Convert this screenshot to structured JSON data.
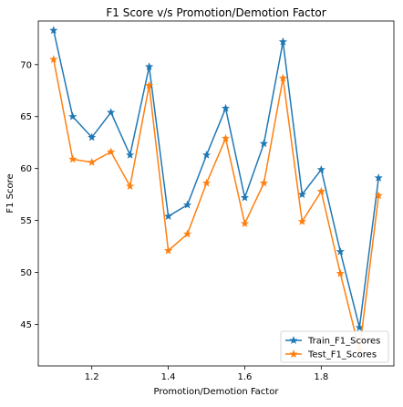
{
  "chart_data": {
    "type": "line",
    "title": "F1 Score v/s Promotion/Demotion Factor",
    "xlabel": "Promotion/Demotion Factor",
    "ylabel": "F1 Score",
    "xlim": [
      1.06,
      1.99
    ],
    "ylim": [
      41.0,
      74.2
    ],
    "xticks": [
      1.2,
      1.4,
      1.6,
      1.8
    ],
    "xtick_labels": [
      "1.2",
      "1.4",
      "1.6",
      "1.8"
    ],
    "yticks": [
      45,
      50,
      55,
      60,
      65,
      70
    ],
    "ytick_labels": [
      "45",
      "50",
      "55",
      "60",
      "65",
      "70"
    ],
    "grid": false,
    "legend_position": "lower-right",
    "marker": "star",
    "x": [
      1.1,
      1.15,
      1.2,
      1.25,
      1.3,
      1.35,
      1.4,
      1.45,
      1.5,
      1.55,
      1.6,
      1.65,
      1.7,
      1.75,
      1.8,
      1.85,
      1.9,
      1.95
    ],
    "series": [
      {
        "name": "Train_F1_Scores",
        "color": "#1f77b4",
        "values": [
          73.3,
          65.0,
          63.0,
          65.4,
          61.3,
          69.8,
          55.4,
          56.5,
          61.3,
          65.8,
          57.2,
          62.4,
          72.2,
          57.5,
          59.9,
          52.0,
          44.7,
          59.1
        ]
      },
      {
        "name": "Test_F1_Scores",
        "color": "#ff7f0e",
        "values": [
          70.5,
          60.9,
          60.6,
          61.6,
          58.3,
          68.0,
          52.1,
          53.7,
          58.6,
          62.9,
          54.7,
          58.6,
          68.7,
          54.9,
          57.8,
          49.9,
          42.5,
          57.4
        ]
      }
    ]
  }
}
